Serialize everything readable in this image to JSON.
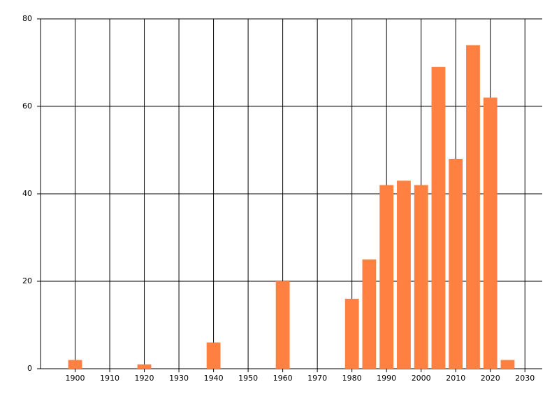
{
  "chart_data": {
    "type": "bar",
    "x": [
      1900,
      1920,
      1940,
      1960,
      1980,
      1985,
      1990,
      1995,
      2000,
      2005,
      2010,
      2015,
      2020,
      2025
    ],
    "values": [
      2,
      1,
      6,
      20,
      16,
      25,
      42,
      43,
      42,
      69,
      48,
      74,
      62,
      2
    ],
    "color": "#ff8040",
    "xlim": [
      1890,
      2035
    ],
    "xticks": [
      1900,
      1910,
      1920,
      1930,
      1940,
      1950,
      1960,
      1970,
      1980,
      1990,
      2000,
      2010,
      2020,
      2030
    ],
    "ylim": [
      0,
      80
    ],
    "yticks": [
      0,
      20,
      40,
      60,
      80
    ],
    "grid": true
  }
}
